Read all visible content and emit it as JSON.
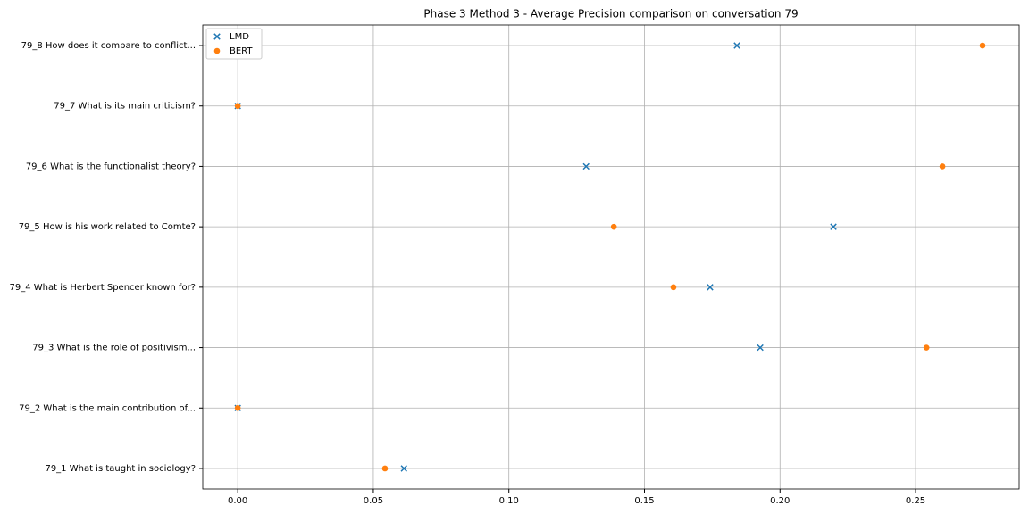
{
  "chart_data": {
    "type": "scatter",
    "title": "Phase 3 Method 3 - Average Precision comparison on conversation 79",
    "categories": [
      "79_1 What is taught in sociology?",
      "79_2 What is the main contribution of...",
      "79_3 What is the role of positivism...",
      "79_4 What is Herbert Spencer known for?",
      "79_5 How is his work related to Comte?",
      "79_6 What is the functionalist theory?",
      "79_7 What is its main criticism?",
      "79_8 How does it compare to conflict..."
    ],
    "series": [
      {
        "name": "LMD",
        "color": "#1f77b4",
        "marker": "x",
        "values": [
          0.0613,
          0,
          0.1927,
          0.1742,
          0.2197,
          0.1285,
          0,
          0.1841
        ]
      },
      {
        "name": "BERT",
        "color": "#ff7f0e",
        "marker": "o",
        "values": [
          0.0543,
          0,
          0.254,
          0.1607,
          0.1387,
          0.2599,
          0,
          0.2747
        ]
      }
    ],
    "xlim": [
      -0.0129,
      0.2882
    ],
    "xticks": [
      {
        "value": 0,
        "label": "0.00"
      },
      {
        "value": 0.05,
        "label": "0.05"
      },
      {
        "value": 0.1,
        "label": "0.10"
      },
      {
        "value": 0.15,
        "label": "0.15"
      },
      {
        "value": 0.2,
        "label": "0.20"
      },
      {
        "value": 0.25,
        "label": "0.25"
      }
    ],
    "grid": true,
    "legend": "upper-left"
  }
}
